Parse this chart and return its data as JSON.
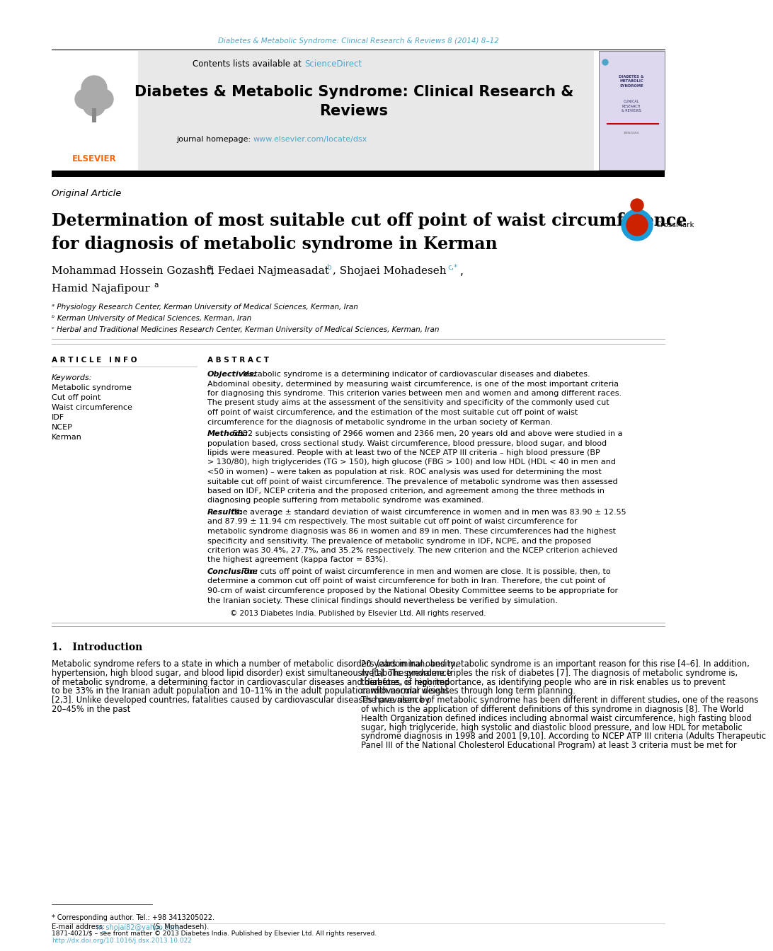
{
  "page_bg": "#ffffff",
  "top_journal_line": "Diabetes & Metabolic Syndrome: Clinical Research & Reviews 8 (2014) 8–12",
  "top_journal_color": "#4da6c8",
  "header_bg": "#e8e8e8",
  "sciencedirect_color": "#4da6c8",
  "journal_homepage_url": "www.elsevier.com/locate/dsx",
  "journal_homepage_color": "#4da6c8",
  "article_info_header": "A R T I C L E   I N F O",
  "abstract_header": "A B S T R A C T",
  "keywords": [
    "Metabolic syndrome",
    "Cut off point",
    "Waist circumference",
    "IDF",
    "NCEP",
    "Kerman"
  ],
  "affil_a": "ᵃ Physiology Research Center, Kerman University of Medical Sciences, Kerman, Iran",
  "affil_b": "ᵇ Kerman University of Medical Sciences, Kerman, Iran",
  "affil_c": "ᶜ Herbal and Traditional Medicines Research Center, Kerman University of Medical Sciences, Kerman, Iran",
  "copyright_text": "© 2013 Diabetes India. Published by Elsevier Ltd. All rights reserved.",
  "abs_lines": [
    [
      "Objectives:",
      " Metabolic syndrome is a determining indicator of cardiovascular diseases and diabetes. Abdominal obesity, determined by measuring waist circumference, is one of the most important criteria for diagnosing this syndrome. This criterion varies between men and women and among different races. The present study aims at the assessment of the sensitivity and specificity of the commonly used cut off point of waist circumference, and the estimation of the most suitable cut off point of waist circumference for the diagnosis of metabolic syndrome in the urban society of Kerman."
    ],
    [
      "Methods:",
      "  5332 subjects consisting of 2966 women and 2366 men, 20 years old and above were studied in a population based, cross sectional study. Waist circumference, blood pressure, blood sugar, and blood lipids were measured. People with at least two of the NCEP ATP III criteria – high blood pressure (BP > 130/80), high triglycerides (TG > 150), high glucose (FBG > 100) and low HDL (HDL < 40 in men and <50 in women) – were taken as population at risk. ROC analysis was used for determining the most suitable cut off point of waist circumference. The prevalence of metabolic syndrome was then assessed based on IDF, NCEP criteria and the proposed criterion, and agreement among the three methods in diagnosing people suffering from metabolic syndrome was examined."
    ],
    [
      "Results:",
      "  The average ± standard deviation of waist circumference in women and in men was 83.90 ± 12.55 and  87.99 ± 11.94 cm respectively. The most suitable cut off point of waist circumference for metabolic syndrome diagnosis was 86 in women and 89 in men. These circumferences had the highest specificity and sensitivity. The prevalence of metabolic syndrome in IDF, NCPE, and the proposed criterion was 30.4%, 27.7%, and  35.2% respectively. The new criterion and the NCEP criterion achieved the highest agreement (kappa factor = 83%)."
    ],
    [
      "Conclusion:",
      "  The cuts off point of waist circumference in men and women are close. It is possible, then, to determine a common cut off point of waist circumference for both in Iran. Therefore, the cut point of 90-cm of waist circumference proposed by the National Obesity Committee seems to be appropriate for the Iranian society. These clinical findings should nevertheless be verified by simulation."
    ]
  ],
  "intro_col1": "Metabolic syndrome refers to a state in which a number of metabolic disorders (abdominal obesity, hypertension, high blood sugar, and blood lipid disorder) exist simultaneously [1]. The prevalence of metabolic syndrome, a determining factor in cardiovascular diseases and diabetes, is reported to be 33% in the Iranian adult population and 10–11% in the adult population with normal weight [2,3]. Unlike developed countries, fatalities caused by cardiovascular diseases have risen by 20–45% in the past",
  "intro_col2": "20 years in Iran, and metabolic syndrome is an important reason for this rise [4–6]. In addition, metabolic syndrome triples the risk of diabetes [7]. The diagnosis of metabolic syndrome is, therefore, of high importance, as identifying people who are in risk enables us to prevent cardiovascular diseases through long term planning.\n    The prevalence of metabolic syndrome has been different in different studies, one of the reasons of which is the application of different definitions of this syndrome in diagnosis [8]. The World Health Organization defined indices including abnormal waist circumference, high fasting blood sugar, high triglyceride, high systolic and diastolic blood pressure, and low HDL for metabolic syndrome diagnosis in 1998 and 2001 [9,10]. According to NCEP ATP III criteria (Adults Therapeutic Panel III of the National Cholesterol Educational Program) at least 3 criteria must be met for",
  "footnote_star": "* Corresponding author. Tel.: +98 3413205022.",
  "footnote_email_label": "E-mail address: ",
  "footnote_email": "m_shojai82@yahoo.com",
  "footnote_email_color": "#4da6c8",
  "footnote_email_end": " (S. Mohadeseh).",
  "bottom_line1": "1871-4021/$ – see front matter © 2013 Diabetes India. Published by Elsevier Ltd. All rights reserved.",
  "bottom_line2": "http://dx.doi.org/10.1016/j.dsx.2013.10.022",
  "bottom_line2_color": "#4da6c8"
}
